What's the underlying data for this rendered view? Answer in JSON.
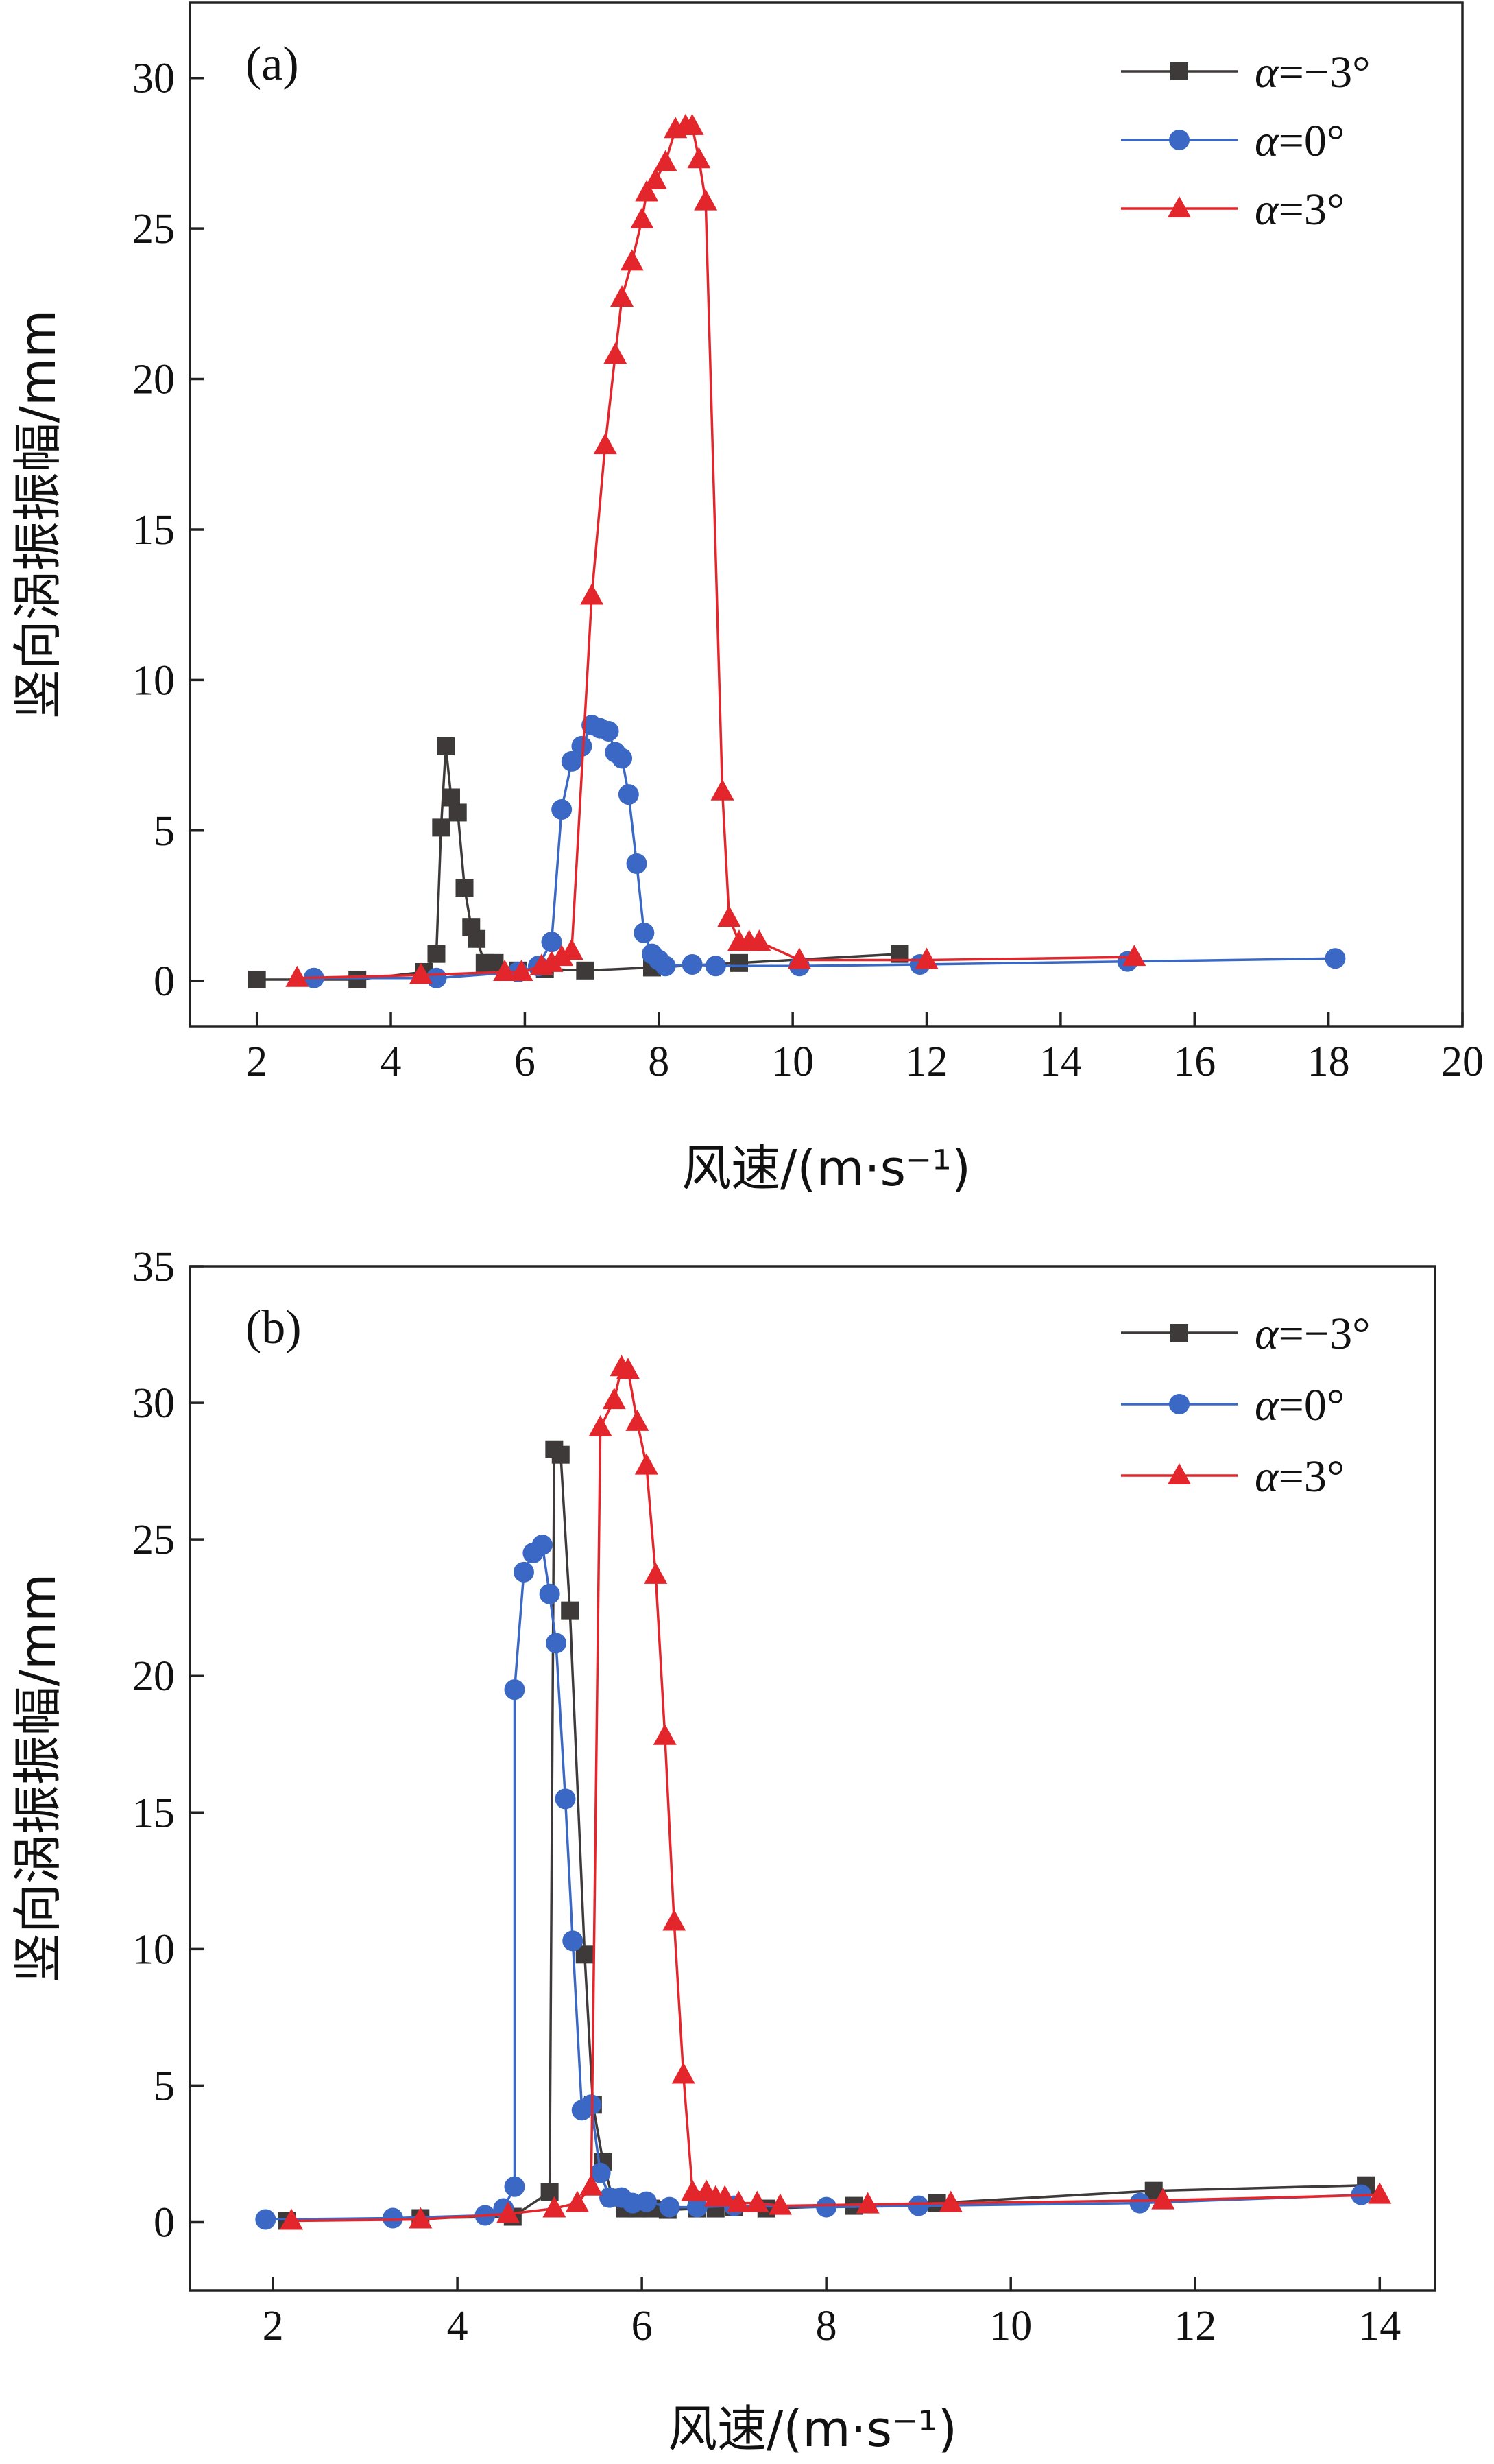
{
  "chart_data": [
    {
      "type": "line",
      "panel_label": "(a)",
      "xlabel": "风速/(m·s⁻¹)",
      "ylabel": "竖向涡振振幅/mm",
      "xlim": [
        1,
        20
      ],
      "ylim": [
        -1.5,
        32.5
      ],
      "xticks": [
        2,
        4,
        6,
        8,
        10,
        12,
        14,
        16,
        18,
        20
      ],
      "yticks": [
        0,
        5,
        10,
        15,
        20,
        25,
        30
      ],
      "grid": false,
      "legend_position": "top-right",
      "series": [
        {
          "name": "α=−3°",
          "alpha_symbol": "α",
          "alpha_rest": "=−3°",
          "color": "#3d3a39",
          "marker": "square",
          "x": [
            2.0,
            3.5,
            4.5,
            4.68,
            4.75,
            4.82,
            4.9,
            5.0,
            5.1,
            5.2,
            5.28,
            5.4,
            5.55,
            5.9,
            6.3,
            6.9,
            7.9,
            9.2,
            11.6
          ],
          "y": [
            0.05,
            0.05,
            0.3,
            0.9,
            5.1,
            7.8,
            6.1,
            5.6,
            3.1,
            1.8,
            1.4,
            0.6,
            0.6,
            0.35,
            0.4,
            0.35,
            0.45,
            0.6,
            0.9
          ]
        },
        {
          "name": "α=0°",
          "alpha_symbol": "α",
          "alpha_rest": "=0°",
          "color": "#3a68c4",
          "marker": "circle",
          "x": [
            2.85,
            4.68,
            5.9,
            6.2,
            6.4,
            6.55,
            6.7,
            6.85,
            7.0,
            7.12,
            7.25,
            7.35,
            7.45,
            7.55,
            7.67,
            7.78,
            7.9,
            8.0,
            8.1,
            8.5,
            8.85,
            10.1,
            11.9,
            15.0,
            18.1
          ],
          "y": [
            0.1,
            0.1,
            0.3,
            0.5,
            1.3,
            5.7,
            7.3,
            7.8,
            8.5,
            8.4,
            8.3,
            7.6,
            7.4,
            6.2,
            3.9,
            1.6,
            0.9,
            0.7,
            0.5,
            0.55,
            0.5,
            0.5,
            0.55,
            0.65,
            0.75
          ]
        },
        {
          "name": "α=3°",
          "alpha_symbol": "α",
          "alpha_rest": "=3°",
          "color": "#e3262c",
          "marker": "triangle",
          "x": [
            2.6,
            4.45,
            5.7,
            5.95,
            6.25,
            6.4,
            6.55,
            6.7,
            7.0,
            7.2,
            7.35,
            7.45,
            7.6,
            7.75,
            7.82,
            7.95,
            8.1,
            8.25,
            8.4,
            8.5,
            8.6,
            8.7,
            8.95,
            9.05,
            9.2,
            9.35,
            9.5,
            10.1,
            12.0,
            15.1
          ],
          "y": [
            0.1,
            0.2,
            0.3,
            0.3,
            0.5,
            0.6,
            0.8,
            1.0,
            12.8,
            17.8,
            20.8,
            22.7,
            23.9,
            25.3,
            26.2,
            26.6,
            27.2,
            28.3,
            28.4,
            28.4,
            27.3,
            25.9,
            6.3,
            2.1,
            1.3,
            1.3,
            1.3,
            0.7,
            0.7,
            0.8
          ]
        }
      ]
    },
    {
      "type": "line",
      "panel_label": "(b)",
      "xlabel": "风速/(m·s⁻¹)",
      "ylabel": "竖向涡振振幅/mm",
      "xlim": [
        1.1,
        14.6
      ],
      "ylim": [
        -2.5,
        35
      ],
      "xticks": [
        2,
        4,
        6,
        8,
        10,
        12,
        14
      ],
      "yticks": [
        0,
        5,
        10,
        15,
        20,
        25,
        30,
        35
      ],
      "grid": false,
      "legend_position": "top-right",
      "series": [
        {
          "name": "α=−3°",
          "alpha_symbol": "α",
          "alpha_rest": "=−3°",
          "color": "#3d3a39",
          "marker": "square",
          "x": [
            2.15,
            3.6,
            4.6,
            5.0,
            5.05,
            5.12,
            5.22,
            5.38,
            5.47,
            5.58,
            5.68,
            5.82,
            5.95,
            6.1,
            6.28,
            6.6,
            6.8,
            7.0,
            7.35,
            8.3,
            9.2,
            11.55,
            13.85
          ],
          "y": [
            0.05,
            0.15,
            0.2,
            1.1,
            28.3,
            28.1,
            22.4,
            9.8,
            4.3,
            2.2,
            0.9,
            0.5,
            0.5,
            0.5,
            0.45,
            0.5,
            0.5,
            0.55,
            0.5,
            0.6,
            0.7,
            1.15,
            1.35
          ]
        },
        {
          "name": "α=0°",
          "alpha_symbol": "α",
          "alpha_rest": "=0°",
          "color": "#3a68c4",
          "marker": "circle",
          "x": [
            1.92,
            3.3,
            4.3,
            4.5,
            4.62,
            4.62,
            4.72,
            4.82,
            4.92,
            5.0,
            5.07,
            5.17,
            5.25,
            5.35,
            5.45,
            5.55,
            5.65,
            5.78,
            5.9,
            6.05,
            6.3,
            6.6,
            7.0,
            8.0,
            9.0,
            11.4,
            13.8
          ],
          "y": [
            0.1,
            0.15,
            0.25,
            0.5,
            1.3,
            19.5,
            23.8,
            24.5,
            24.8,
            23.0,
            21.2,
            15.5,
            10.3,
            4.1,
            4.3,
            1.8,
            0.9,
            0.9,
            0.7,
            0.75,
            0.55,
            0.55,
            0.6,
            0.55,
            0.6,
            0.7,
            1.0
          ]
        },
        {
          "name": "α=3°",
          "alpha_symbol": "α",
          "alpha_rest": "=3°",
          "color": "#e3262c",
          "marker": "triangle",
          "x": [
            2.2,
            3.6,
            4.55,
            5.05,
            5.3,
            5.45,
            5.55,
            5.7,
            5.78,
            5.85,
            5.95,
            6.05,
            6.15,
            6.25,
            6.35,
            6.45,
            6.55,
            6.7,
            6.8,
            6.9,
            7.05,
            7.25,
            7.5,
            8.45,
            9.35,
            11.65,
            14.0
          ],
          "y": [
            0.05,
            0.1,
            0.3,
            0.5,
            0.7,
            1.3,
            29.1,
            30.1,
            31.3,
            31.2,
            29.3,
            27.7,
            23.7,
            17.8,
            11.0,
            5.4,
            1.1,
            1.1,
            0.9,
            0.9,
            0.7,
            0.7,
            0.6,
            0.65,
            0.7,
            0.8,
            1.0
          ]
        }
      ]
    }
  ]
}
